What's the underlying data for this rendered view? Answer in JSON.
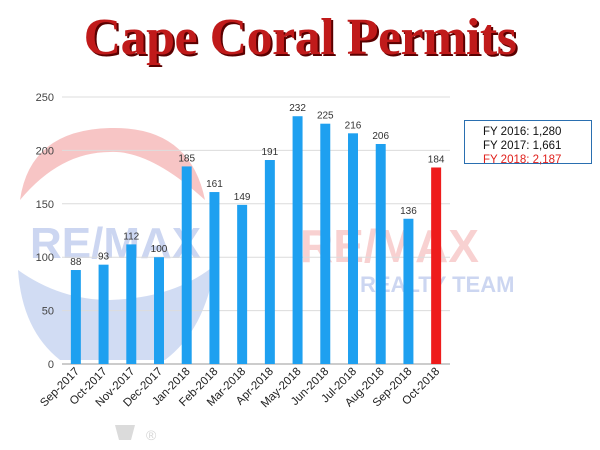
{
  "title": "Cape Coral Permits",
  "watermark": {
    "logo_text": "RE/MAX",
    "team_text": "REALTY TEAM",
    "registered_mark": "®"
  },
  "totals": [
    {
      "label": "FY 2016: 1,280",
      "color": "#111111"
    },
    {
      "label": "FY 2017: 1,661",
      "color": "#111111"
    },
    {
      "label": "FY 2018: 2,187",
      "color": "#e0201c"
    }
  ],
  "chart_data": {
    "type": "bar",
    "title": "Cape Coral Permits",
    "xlabel": "",
    "ylabel": "",
    "categories": [
      "Sep-2017",
      "Oct-2017",
      "Nov-2017",
      "Dec-2017",
      "Jan-2018",
      "Feb-2018",
      "Mar-2018",
      "Apr-2018",
      "May-2018",
      "Jun-2018",
      "Jul-2018",
      "Aug-2018",
      "Sep-2018",
      "Oct-2018"
    ],
    "values": [
      88,
      93,
      112,
      100,
      185,
      161,
      149,
      191,
      232,
      225,
      216,
      206,
      136,
      184
    ],
    "bar_colors": [
      "#1ea0f0",
      "#1ea0f0",
      "#1ea0f0",
      "#1ea0f0",
      "#1ea0f0",
      "#1ea0f0",
      "#1ea0f0",
      "#1ea0f0",
      "#1ea0f0",
      "#1ea0f0",
      "#1ea0f0",
      "#1ea0f0",
      "#1ea0f0",
      "#ee1c1c"
    ],
    "ylim": [
      0,
      250
    ],
    "yticks": [
      0,
      50,
      100,
      150,
      200,
      250
    ],
    "grid": true,
    "legend": "none"
  }
}
